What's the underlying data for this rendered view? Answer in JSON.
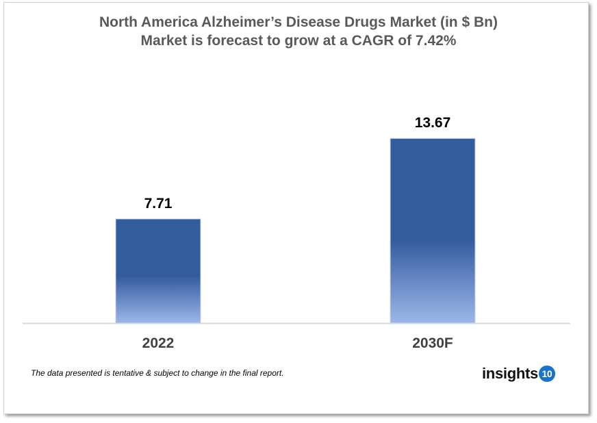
{
  "chart_data": {
    "type": "bar",
    "title": "North America Alzheimer’s Disease Drugs Market (in $ Bn)",
    "subtitle": "Market is forecast to grow at a CAGR of 7.42%",
    "categories": [
      "2022",
      "2030F"
    ],
    "values": [
      7.71,
      13.67
    ],
    "data_labels": [
      "7.71",
      "13.67"
    ],
    "xlabel": "",
    "ylabel": "",
    "ylim": [
      0,
      15
    ],
    "grid": false,
    "legend": "none",
    "bar_color_top": "#335c9f",
    "bar_color_bottom": "#9db6e8"
  },
  "footnote": "The data presented is tentative & subject to change in the final report.",
  "logo": {
    "text": "insights",
    "badge": "10",
    "badge_color": "#1a73c8"
  }
}
